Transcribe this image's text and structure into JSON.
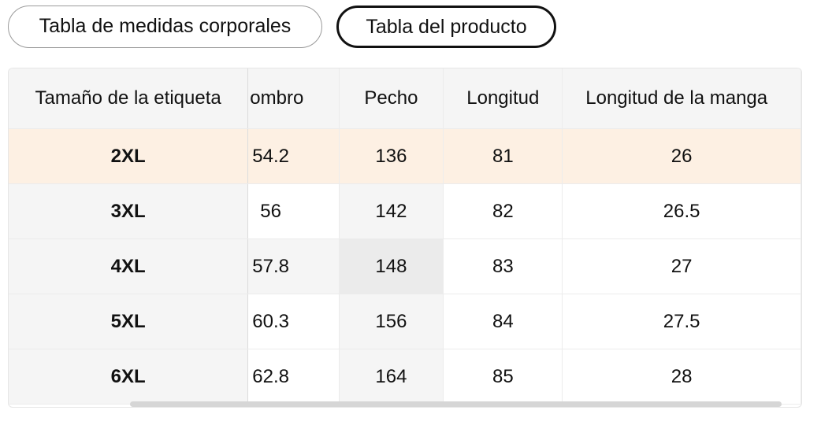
{
  "tabs": {
    "body_measurements": "Tabla de medidas corporales",
    "product": "Tabla del producto",
    "active": "product"
  },
  "table": {
    "headers": {
      "size": "Tamaño de la etiqueta",
      "shoulder": "ombro",
      "chest": "Pecho",
      "length": "Longitud",
      "sleeve": "Longitud de la manga"
    },
    "rows": [
      {
        "size": "2XL",
        "shoulder": "54.2",
        "chest": "136",
        "length": "81",
        "sleeve": "26"
      },
      {
        "size": "3XL",
        "shoulder": "56",
        "chest": "142",
        "length": "82",
        "sleeve": "26.5"
      },
      {
        "size": "4XL",
        "shoulder": "57.8",
        "chest": "148",
        "length": "83",
        "sleeve": "27"
      },
      {
        "size": "5XL",
        "shoulder": "60.3",
        "chest": "156",
        "length": "84",
        "sleeve": "27.5"
      },
      {
        "size": "6XL",
        "shoulder": "62.8",
        "chest": "164",
        "length": "85",
        "sleeve": "28"
      }
    ],
    "highlighted_row_color": "#fdf0e3"
  }
}
